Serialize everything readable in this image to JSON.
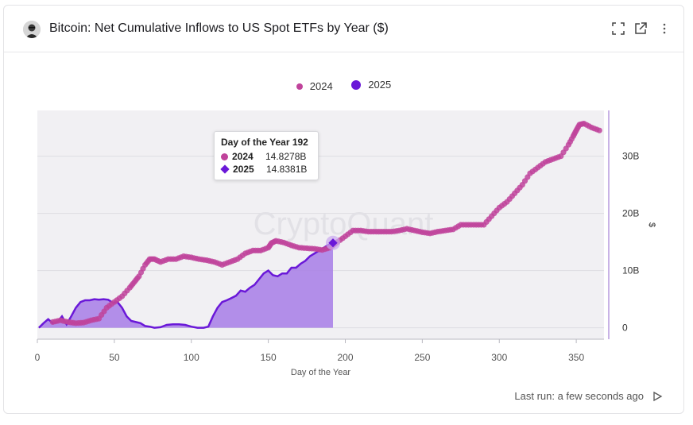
{
  "header": {
    "title": "Bitcoin: Net Cumulative Inflows to US Spot ETFs by Year ($)"
  },
  "icons": {
    "avatar": "user-avatar",
    "expand": "expand-icon",
    "external": "external-link-icon",
    "more": "more-vertical-icon",
    "run": "play-icon"
  },
  "colors": {
    "series_2024": "#c0439b",
    "series_2025": "#6a18d8",
    "area_2025": "#a77de6",
    "plot_bg": "#f1f0f3"
  },
  "tooltip": {
    "title": "Day of the Year 192",
    "rows": [
      {
        "name": "2024",
        "value": "14.8278B"
      },
      {
        "name": "2025",
        "value": "14.8381B"
      }
    ]
  },
  "watermark": "CryptoQuant",
  "footer": {
    "last_run": "Last run: a few seconds ago"
  },
  "chart_data": {
    "type": "line",
    "title": "Bitcoin: Net Cumulative Inflows to US Spot ETFs by Year ($)",
    "xlabel": "Day of the Year",
    "ylabel": "$",
    "xlim": [
      0,
      368
    ],
    "ylim": [
      -2,
      38
    ],
    "x_ticks": [
      "0",
      "50",
      "100",
      "150",
      "200",
      "250",
      "300",
      "350"
    ],
    "y_ticks": [
      "0",
      "10B",
      "20B",
      "30B"
    ],
    "y_tick_values": [
      0,
      10,
      20,
      30
    ],
    "x_tick_values": [
      0,
      50,
      100,
      150,
      200,
      250,
      300,
      350
    ],
    "legend": [
      "2024",
      "2025"
    ],
    "legend_position": "top-center",
    "grid": true,
    "series": [
      {
        "name": "2024",
        "style": "scatter",
        "x": [
          10,
          15,
          20,
          25,
          30,
          35,
          40,
          45,
          50,
          55,
          60,
          63,
          66,
          70,
          73,
          76,
          80,
          85,
          90,
          95,
          100,
          105,
          110,
          115,
          120,
          125,
          130,
          135,
          140,
          145,
          150,
          152,
          155,
          160,
          165,
          170,
          175,
          180,
          185,
          190,
          195,
          200,
          205,
          210,
          215,
          220,
          225,
          230,
          235,
          240,
          245,
          250,
          255,
          260,
          265,
          270,
          275,
          280,
          285,
          290,
          295,
          300,
          305,
          310,
          315,
          320,
          325,
          330,
          335,
          340,
          345,
          348,
          350,
          352,
          355,
          360,
          365
        ],
        "y": [
          1.0,
          1.3,
          1.0,
          0.8,
          0.9,
          1.3,
          1.6,
          3.5,
          4.5,
          5.5,
          7.0,
          8.0,
          9.0,
          11.0,
          12.0,
          12.0,
          11.5,
          12.0,
          12.0,
          12.5,
          12.3,
          12.0,
          11.8,
          11.5,
          11.0,
          11.5,
          12.0,
          13.0,
          13.5,
          13.5,
          14.0,
          14.8,
          15.2,
          14.9,
          14.4,
          14.0,
          13.9,
          13.8,
          13.6,
          14.0,
          15.0,
          16.0,
          17.0,
          17.0,
          16.8,
          16.8,
          16.8,
          16.8,
          17.0,
          17.3,
          17.0,
          16.7,
          16.5,
          16.8,
          17.0,
          17.2,
          18.0,
          18.0,
          18.0,
          18.0,
          19.5,
          21.0,
          22.0,
          23.5,
          25.0,
          27.0,
          28.0,
          29.0,
          29.5,
          30.0,
          32.0,
          33.5,
          34.5,
          35.5,
          35.7,
          35.0,
          34.5
        ]
      },
      {
        "name": "2025",
        "style": "area",
        "x": [
          1,
          4,
          7,
          10,
          13,
          16,
          19,
          22,
          25,
          28,
          31,
          34,
          37,
          40,
          43,
          46,
          49,
          52,
          55,
          58,
          61,
          64,
          67,
          70,
          73,
          76,
          80,
          84,
          88,
          92,
          96,
          100,
          104,
          108,
          111,
          114,
          117,
          120,
          123,
          126,
          129,
          132,
          135,
          138,
          141,
          144,
          147,
          150,
          153,
          156,
          159,
          162,
          165,
          168,
          171,
          174,
          177,
          180,
          183,
          186,
          189,
          192
        ],
        "y": [
          0.0,
          0.8,
          1.5,
          0.8,
          1.0,
          2.0,
          0.6,
          2.0,
          3.5,
          4.5,
          4.8,
          4.8,
          5.0,
          4.9,
          5.0,
          4.9,
          4.4,
          4.5,
          3.5,
          2.0,
          1.2,
          1.0,
          0.8,
          0.3,
          0.2,
          0.0,
          0.1,
          0.5,
          0.6,
          0.6,
          0.5,
          0.2,
          0.0,
          0.0,
          0.2,
          2.0,
          3.5,
          4.5,
          4.8,
          5.2,
          5.6,
          6.5,
          6.3,
          7.0,
          7.5,
          8.5,
          9.5,
          10.0,
          9.2,
          9.0,
          9.5,
          9.5,
          10.5,
          10.5,
          11.2,
          11.7,
          12.5,
          13.0,
          13.5,
          14.0,
          14.5,
          14.84
        ]
      }
    ]
  }
}
